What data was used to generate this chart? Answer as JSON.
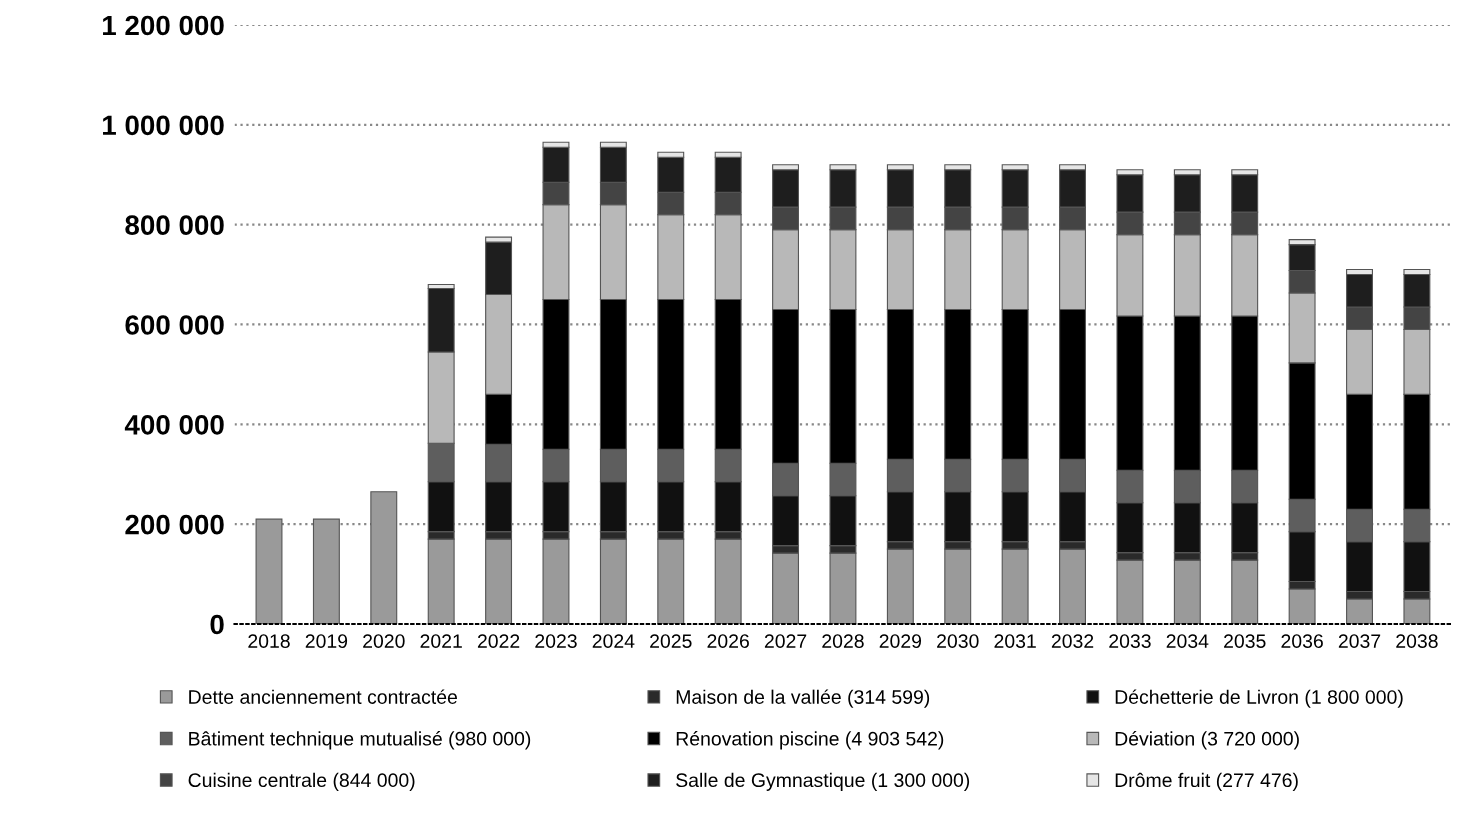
{
  "chart_data": {
    "type": "bar",
    "stacked": true,
    "categories": [
      "2018",
      "2019",
      "2020",
      "2021",
      "2022",
      "2023",
      "2024",
      "2025",
      "2026",
      "2027",
      "2028",
      "2029",
      "2030",
      "2031",
      "2032",
      "2033",
      "2034",
      "2035",
      "2036",
      "2037",
      "2038"
    ],
    "series": [
      {
        "name": "Dette anciennement contractée",
        "color": "#9a9a9a",
        "values": [
          210000,
          210000,
          265000,
          170000,
          170000,
          170000,
          170000,
          170000,
          170000,
          142000,
          142000,
          150000,
          150000,
          150000,
          150000,
          128000,
          128000,
          128000,
          70000,
          50000,
          50000
        ]
      },
      {
        "name": "Maison de la vallée (314 599)",
        "color": "#2a2a2a",
        "values": [
          null,
          null,
          null,
          15000,
          15000,
          15000,
          15000,
          15000,
          15000,
          15000,
          15000,
          15000,
          15000,
          15000,
          15000,
          15000,
          15000,
          15000,
          15000,
          15000,
          15000
        ]
      },
      {
        "name": "Déchetterie de Livron (1 800 000)",
        "color": "#111111",
        "values": [
          null,
          null,
          null,
          100000,
          100000,
          100000,
          100000,
          100000,
          100000,
          100000,
          100000,
          100000,
          100000,
          100000,
          100000,
          100000,
          100000,
          100000,
          100000,
          100000,
          100000
        ]
      },
      {
        "name": "Bâtiment technique mutualisé (980 000)",
        "color": "#5e5e5e",
        "values": [
          null,
          null,
          null,
          77000,
          75000,
          65000,
          65000,
          65000,
          65000,
          65000,
          65000,
          65000,
          65000,
          65000,
          65000,
          65000,
          65000,
          65000,
          65000,
          65000,
          65000
        ]
      },
      {
        "name": "Rénovation piscine (4 903 542)",
        "color": "#000000",
        "values": [
          null,
          null,
          null,
          null,
          100000,
          300000,
          300000,
          300000,
          300000,
          308000,
          308000,
          300000,
          300000,
          300000,
          300000,
          309000,
          309000,
          309000,
          273000,
          230000,
          230000
        ]
      },
      {
        "name": "Déviation (3 720 000)",
        "color": "#b8b8b8",
        "values": [
          null,
          null,
          null,
          183000,
          200000,
          190000,
          190000,
          170000,
          170000,
          160000,
          160000,
          160000,
          160000,
          160000,
          160000,
          163000,
          163000,
          163000,
          140000,
          130000,
          130000
        ]
      },
      {
        "name": "Cuisine centrale (844 000)",
        "color": "#444444",
        "values": [
          null,
          null,
          null,
          null,
          null,
          45000,
          45000,
          45000,
          45000,
          45000,
          45000,
          45000,
          45000,
          45000,
          45000,
          45000,
          45000,
          45000,
          45000,
          45000,
          45000
        ]
      },
      {
        "name": "Salle de Gymnastique (1 300 000)",
        "color": "#1e1e1e",
        "values": [
          null,
          null,
          null,
          127000,
          105000,
          70000,
          70000,
          70000,
          70000,
          75000,
          75000,
          75000,
          75000,
          75000,
          75000,
          75000,
          75000,
          75000,
          52000,
          65000,
          65000
        ]
      },
      {
        "name": "Drôme fruit (277 476)",
        "color": "#e6e6e6",
        "values": [
          null,
          null,
          null,
          8000,
          10000,
          10000,
          10000,
          10000,
          10000,
          10000,
          10000,
          10000,
          10000,
          10000,
          10000,
          10000,
          10000,
          10000,
          10000,
          10000,
          10000
        ]
      }
    ],
    "ylim": [
      0,
      1200000
    ],
    "yticks": [
      {
        "value": 0,
        "label": "0"
      },
      {
        "value": 200000,
        "label": "200 000"
      },
      {
        "value": 400000,
        "label": "400 000"
      },
      {
        "value": 600000,
        "label": "600 000"
      },
      {
        "value": 800000,
        "label": "800 000"
      },
      {
        "value": 1000000,
        "label": "1 000 000"
      },
      {
        "value": 1200000,
        "label": "1 200 000"
      }
    ],
    "grid": "y",
    "legend": "bottom"
  }
}
